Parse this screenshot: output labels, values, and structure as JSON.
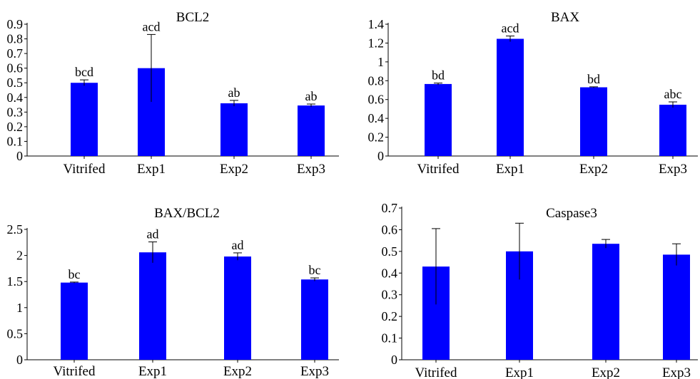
{
  "chart_data": [
    {
      "type": "bar",
      "title": "BCL2",
      "categories": [
        "Vitrifed",
        "Exp1",
        "Exp2",
        "Exp3"
      ],
      "values": [
        0.5,
        0.6,
        0.36,
        0.345
      ],
      "errors": [
        0.02,
        0.23,
        0.02,
        0.01
      ],
      "labels": [
        "bcd",
        "acd",
        "ab",
        "ab"
      ],
      "ylim": [
        0,
        0.9
      ],
      "yticks": [
        "0",
        "0.1",
        "0.2",
        "0.3",
        "0.4",
        "0.5",
        "0.6",
        "0.7",
        "0.8",
        "0.9"
      ],
      "bar_color": "#0000ff"
    },
    {
      "type": "bar",
      "title": "BAX",
      "categories": [
        "Vitrifed",
        "Exp1",
        "Exp2",
        "Exp3"
      ],
      "values": [
        0.765,
        1.245,
        0.73,
        0.545
      ],
      "errors": [
        0.01,
        0.03,
        0.005,
        0.03
      ],
      "labels": [
        "bd",
        "acd",
        "bd",
        "abc"
      ],
      "ylim": [
        0,
        1.4
      ],
      "yticks": [
        "0",
        "0.2",
        "0.4",
        "0.6",
        "0.8",
        "1",
        "1.2",
        "1.4"
      ],
      "bar_color": "#0000ff"
    },
    {
      "type": "bar",
      "title": "BAX/BCL2",
      "categories": [
        "Vitrifed",
        "Exp1",
        "Exp2",
        "Exp3"
      ],
      "values": [
        1.48,
        2.06,
        1.98,
        1.54
      ],
      "errors": [
        0.01,
        0.2,
        0.07,
        0.03
      ],
      "labels": [
        "bc",
        "ad",
        "ad",
        "bc"
      ],
      "ylim": [
        0,
        2.5
      ],
      "yticks": [
        "0",
        "0.5",
        "1",
        "1.5",
        "2",
        "2.5"
      ],
      "bar_color": "#0000ff"
    },
    {
      "type": "bar",
      "title": "Caspase3",
      "categories": [
        "Vitrifed",
        "Exp1",
        "Exp2",
        "Exp3"
      ],
      "values": [
        0.43,
        0.5,
        0.535,
        0.485
      ],
      "errors": [
        0.175,
        0.13,
        0.02,
        0.05
      ],
      "labels": [
        "",
        "",
        "",
        ""
      ],
      "ylim": [
        0,
        0.7
      ],
      "yticks": [
        "0",
        "0.1",
        "0.2",
        "0.3",
        "0.4",
        "0.5",
        "0.6",
        "0.7"
      ],
      "bar_color": "#0000ff"
    }
  ]
}
